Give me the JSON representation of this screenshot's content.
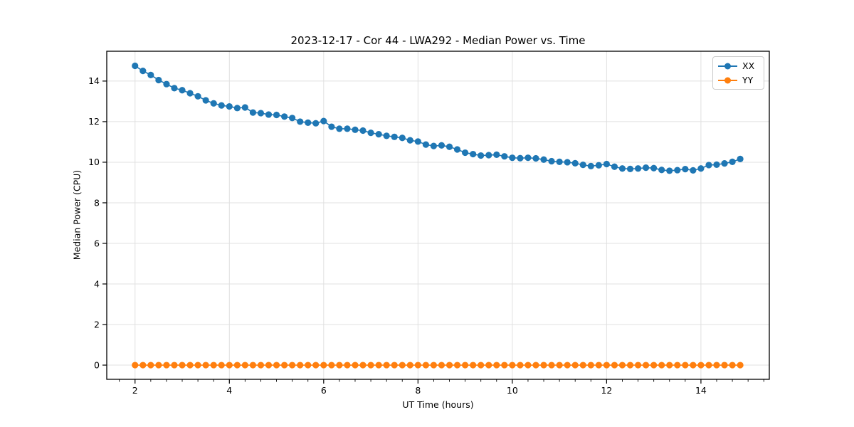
{
  "chart_data": {
    "type": "line",
    "title": "2023-12-17 - Cor 44 - LWA292 - Median Power vs. Time",
    "xlabel": "UT Time (hours)",
    "ylabel": "Median Power (CPU)",
    "xlim": [
      1.4,
      15.45
    ],
    "ylim": [
      -0.7,
      15.47
    ],
    "xticks": [
      2,
      4,
      6,
      8,
      10,
      12,
      14
    ],
    "yticks": [
      0,
      2,
      4,
      6,
      8,
      10,
      12,
      14
    ],
    "minor_xtick_step": 0.33333,
    "grid": "major",
    "legend_position": "upper right",
    "x": [
      2.0,
      2.167,
      2.333,
      2.5,
      2.667,
      2.833,
      3.0,
      3.167,
      3.333,
      3.5,
      3.667,
      3.833,
      4.0,
      4.167,
      4.333,
      4.5,
      4.667,
      4.833,
      5.0,
      5.167,
      5.333,
      5.5,
      5.667,
      5.833,
      6.0,
      6.167,
      6.333,
      6.5,
      6.667,
      6.833,
      7.0,
      7.167,
      7.333,
      7.5,
      7.667,
      7.833,
      8.0,
      8.167,
      8.333,
      8.5,
      8.667,
      8.833,
      9.0,
      9.167,
      9.333,
      9.5,
      9.667,
      9.833,
      10.0,
      10.167,
      10.333,
      10.5,
      10.667,
      10.833,
      11.0,
      11.167,
      11.333,
      11.5,
      11.667,
      11.833,
      12.0,
      12.167,
      12.333,
      12.5,
      12.667,
      12.833,
      13.0,
      13.167,
      13.333,
      13.5,
      13.667,
      13.833,
      14.0,
      14.167,
      14.333,
      14.5,
      14.667,
      14.833
    ],
    "series": [
      {
        "name": "XX",
        "color": "#1f77b4",
        "marker": "circle",
        "values": [
          14.75,
          14.5,
          14.3,
          14.05,
          13.85,
          13.65,
          13.55,
          13.4,
          13.25,
          13.05,
          12.9,
          12.8,
          12.75,
          12.67,
          12.7,
          12.45,
          12.42,
          12.35,
          12.33,
          12.25,
          12.18,
          12.0,
          11.95,
          11.92,
          12.03,
          11.75,
          11.65,
          11.65,
          11.6,
          11.56,
          11.45,
          11.38,
          11.3,
          11.25,
          11.2,
          11.08,
          11.02,
          10.87,
          10.8,
          10.83,
          10.76,
          10.63,
          10.47,
          10.4,
          10.33,
          10.35,
          10.37,
          10.29,
          10.22,
          10.2,
          10.22,
          10.19,
          10.13,
          10.05,
          10.02,
          10.0,
          9.95,
          9.87,
          9.81,
          9.85,
          9.91,
          9.78,
          9.69,
          9.67,
          9.69,
          9.73,
          9.71,
          9.62,
          9.58,
          9.61,
          9.66,
          9.6,
          9.69,
          9.86,
          9.88,
          9.94,
          10.02,
          10.16
        ]
      },
      {
        "name": "YY",
        "color": "#ff7f0e",
        "marker": "circle",
        "values": [
          0.0,
          0.0,
          0.0,
          0.0,
          0.0,
          0.0,
          0.0,
          0.0,
          0.0,
          0.0,
          0.0,
          0.0,
          0.0,
          0.0,
          0.0,
          0.0,
          0.0,
          0.0,
          0.0,
          0.0,
          0.0,
          0.0,
          0.0,
          0.0,
          0.0,
          0.0,
          0.0,
          0.0,
          0.0,
          0.0,
          0.0,
          0.0,
          0.0,
          0.0,
          0.0,
          0.0,
          0.0,
          0.0,
          0.0,
          0.0,
          0.0,
          0.0,
          0.0,
          0.0,
          0.0,
          0.0,
          0.0,
          0.0,
          0.0,
          0.0,
          0.0,
          0.0,
          0.0,
          0.0,
          0.0,
          0.0,
          0.0,
          0.0,
          0.0,
          0.0,
          0.0,
          0.0,
          0.0,
          0.0,
          0.0,
          0.0,
          0.0,
          0.0,
          0.0,
          0.0,
          0.0,
          0.0,
          0.0,
          0.0,
          0.0,
          0.0,
          0.0,
          0.0
        ]
      }
    ],
    "style": {
      "grid_color": "#e0e0e0",
      "spine_color": "#000000",
      "tick_label_color": "#000000"
    }
  }
}
